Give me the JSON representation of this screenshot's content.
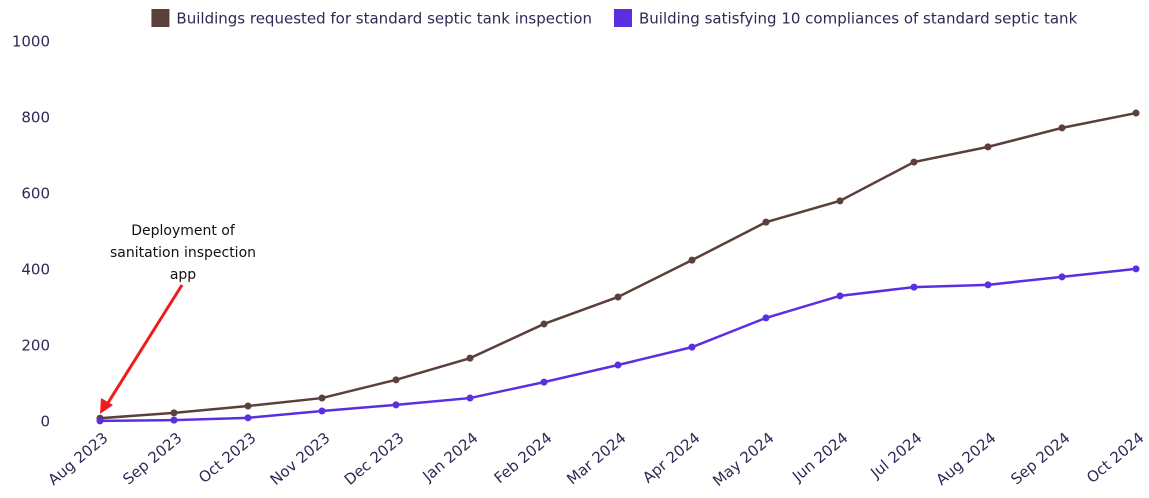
{
  "chart_data": {
    "type": "line",
    "legend": "top",
    "annotation": [
      "Deployment of",
      "sanitation inspection",
      "app"
    ],
    "categories": [
      "Aug 2023",
      "Sep 2023",
      "Oct 2023",
      "Nov 2023",
      "Dec 2023",
      "Jan 2024",
      "Feb 2024",
      "Mar 2024",
      "Apr 2024",
      "May 2024",
      "Jun 2024",
      "Jul 2024",
      "Aug 2024",
      "Sep 2024",
      "Oct 2024"
    ],
    "series": [
      {
        "name": "Buildings requested for standard septic tank inspection",
        "color": "#5b3f3a",
        "values": [
          10,
          24,
          42,
          63,
          111,
          168,
          258,
          329,
          426,
          526,
          582,
          684,
          724,
          774,
          813
        ]
      },
      {
        "name": "Building satisfying 10 compliances of standard septic tank",
        "color": "#5a2fe0",
        "values": [
          3,
          5,
          11,
          29,
          45,
          63,
          105,
          150,
          197,
          274,
          332,
          355,
          361,
          382,
          403
        ]
      }
    ],
    "ylim": [
      0,
      1000
    ],
    "yticks": [
      0,
      200,
      400,
      600,
      800,
      1000
    ],
    "grid": false
  }
}
